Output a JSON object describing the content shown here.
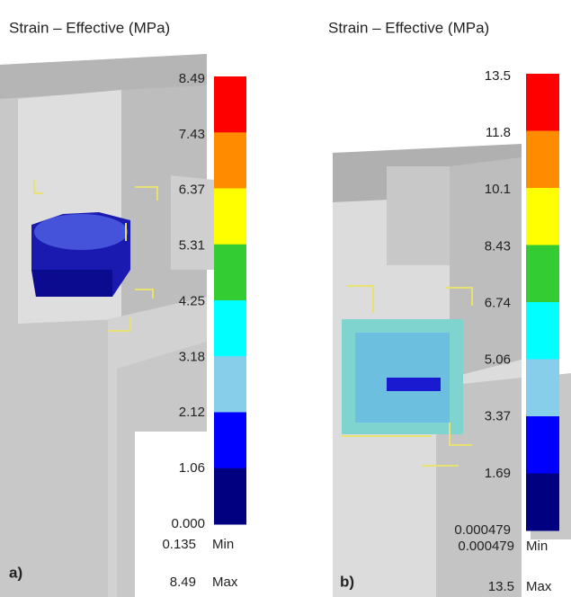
{
  "panels": [
    {
      "label": "a)",
      "title": "Strain – Effective (MPa)",
      "scale_labels": [
        "8.49",
        "7.43",
        "6.37",
        "5.31",
        "4.25",
        "3.18",
        "2.12",
        "1.06",
        "0.000"
      ],
      "min_value": "0.135",
      "min_label": "Min",
      "max_value": "8.49",
      "max_label": "Max"
    },
    {
      "label": "b)",
      "title": "Strain – Effective (MPa)",
      "scale_labels": [
        "13.5",
        "11.8",
        "10.1",
        "8.43",
        "6.74",
        "5.06",
        "3.37",
        "1.69",
        "0.000479"
      ],
      "min_value": "0.000479",
      "min_label": "Min",
      "max_value": "13.5",
      "max_label": "Max"
    }
  ]
}
